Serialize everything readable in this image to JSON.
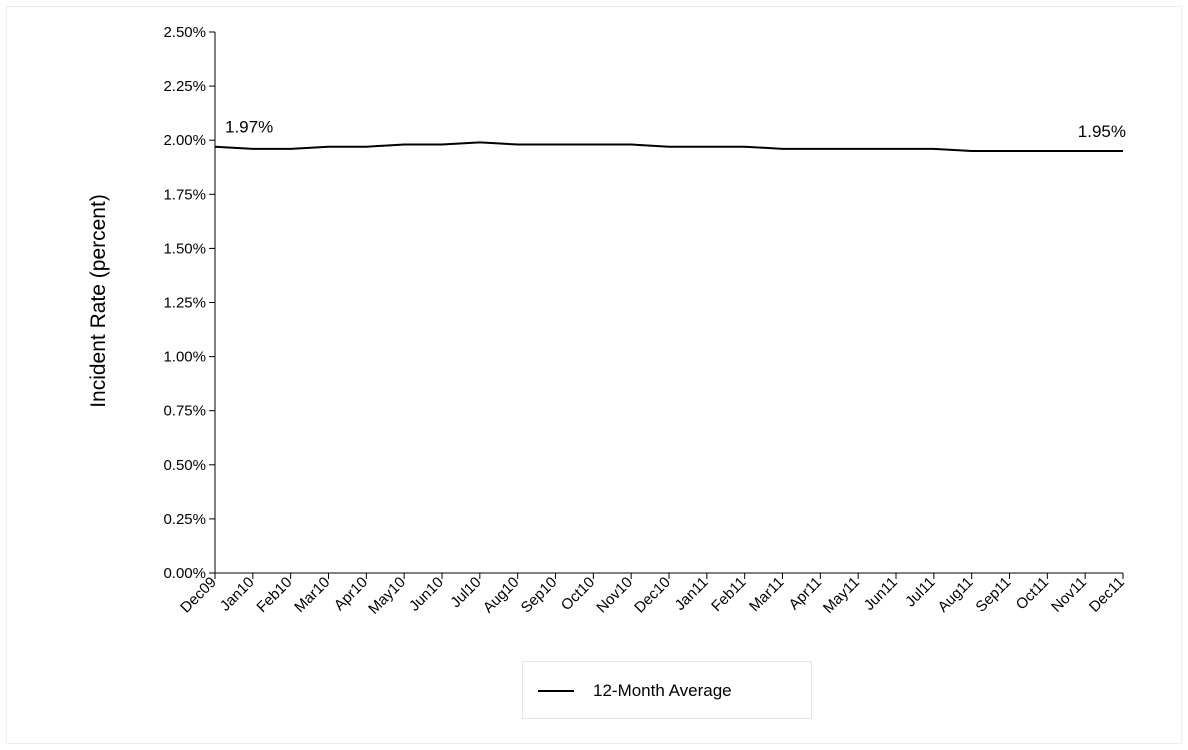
{
  "chart_data": {
    "type": "line",
    "title": "",
    "xlabel": "",
    "ylabel": "Incident Rate (percent)",
    "categories": [
      "Dec09",
      "Jan10",
      "Feb10",
      "Mar10",
      "Apr10",
      "May10",
      "Jun10",
      "Jul10",
      "Aug10",
      "Sep10",
      "Oct10",
      "Nov10",
      "Dec10",
      "Jan11",
      "Feb11",
      "Mar11",
      "Apr11",
      "May11",
      "Jun11",
      "Jul11",
      "Aug11",
      "Sep11",
      "Oct11",
      "Nov11",
      "Dec11"
    ],
    "y_ticks": [
      "0.00%",
      "0.25%",
      "0.50%",
      "0.75%",
      "1.00%",
      "1.25%",
      "1.50%",
      "1.75%",
      "2.00%",
      "2.25%",
      "2.50%"
    ],
    "ylim": [
      0,
      2.5
    ],
    "series": [
      {
        "name": "12-Month Average",
        "color": "#000000",
        "values": [
          1.97,
          1.96,
          1.96,
          1.97,
          1.97,
          1.98,
          1.98,
          1.99,
          1.98,
          1.98,
          1.98,
          1.98,
          1.97,
          1.97,
          1.97,
          1.96,
          1.96,
          1.96,
          1.96,
          1.96,
          1.95,
          1.95,
          1.95,
          1.95,
          1.95
        ]
      }
    ],
    "annotations": [
      {
        "index": 0,
        "text": "1.97%"
      },
      {
        "index": 24,
        "text": "1.95%"
      }
    ],
    "grid": false,
    "legend_position": "bottom"
  }
}
